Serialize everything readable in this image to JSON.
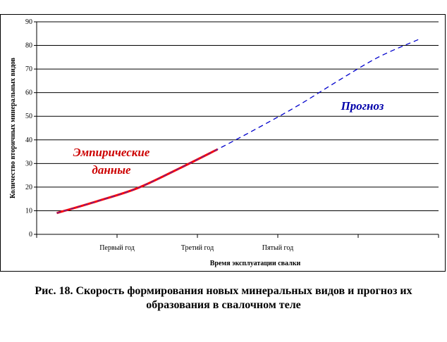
{
  "chart_data": {
    "type": "line",
    "xlabel": "Время эксплуатации свалки",
    "ylabel": "Количество вторичных минеральных видов",
    "ylim": [
      0,
      90
    ],
    "yticks": [
      0,
      10,
      20,
      30,
      40,
      50,
      60,
      70,
      80,
      90
    ],
    "categories": [
      "",
      "Первый год",
      "",
      "Третий год",
      "",
      "Пятый год",
      "",
      "",
      "",
      ""
    ],
    "grid": true,
    "series": [
      {
        "label": "Эмпирические данные",
        "color": "#ff0000",
        "style": "solid",
        "x": [
          1,
          2,
          3,
          4,
          5
        ],
        "y": [
          9,
          14,
          19.5,
          27.5,
          36
        ]
      },
      {
        "label": "Прогноз",
        "color": "#0000cc",
        "style": "dashed",
        "x": [
          1,
          2,
          3,
          4,
          5,
          6,
          7,
          8,
          9,
          10
        ],
        "y": [
          9,
          14,
          19.5,
          27.5,
          36,
          45,
          54.5,
          65,
          75,
          82.5
        ]
      }
    ],
    "annotations": [
      {
        "line1": "Эмпирические",
        "line2": "данные",
        "color": "#cc0000"
      },
      {
        "line1": "Прогноз",
        "color": "#0000aa"
      }
    ]
  },
  "caption": {
    "line1": "Рис. 18. Скорость формирования новых минеральных видов и прогноз их",
    "line2": "образования в свалочном теле"
  }
}
